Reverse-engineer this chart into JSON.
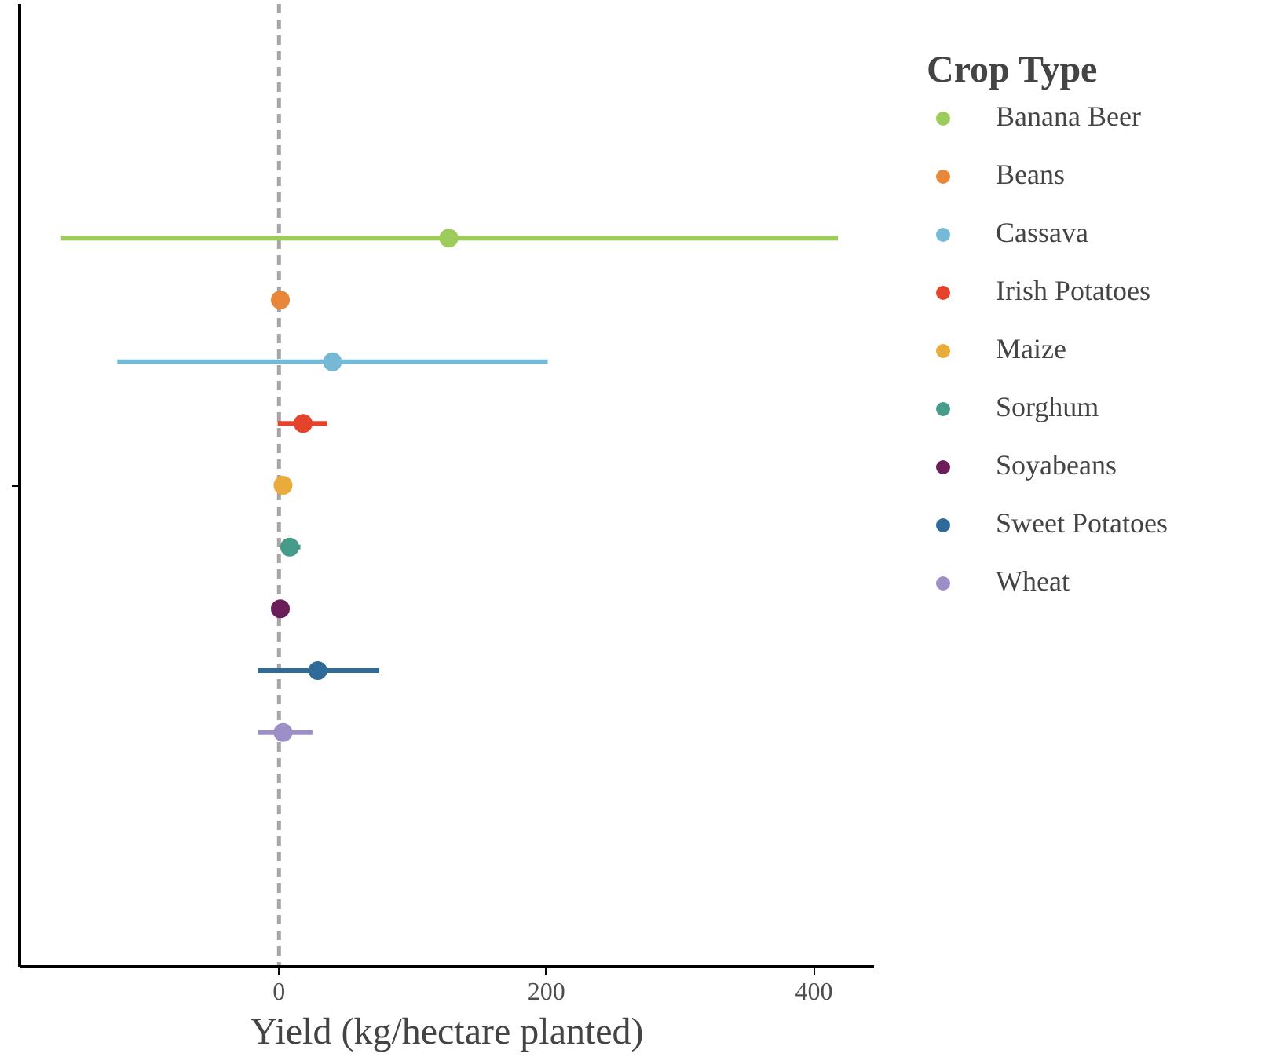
{
  "chart_data": {
    "type": "scatter",
    "orientation": "horizontal",
    "xlabel": "Yield (kg/hectare planted)",
    "legend_title": "Crop Type",
    "categories": [
      null
    ],
    "series": [
      {
        "name": "Banana Beer",
        "color": "#9dcb5c",
        "values": [
          127
        ],
        "errors": [
          [
            -163,
            418
          ]
        ]
      },
      {
        "name": "Beans",
        "color": "#e8873a",
        "values": [
          1
        ],
        "errors": [
          null
        ]
      },
      {
        "name": "Cassava",
        "color": "#76b9d7",
        "values": [
          40
        ],
        "errors": [
          [
            -121,
            201
          ]
        ]
      },
      {
        "name": "Irish Potatoes",
        "color": "#e5432b",
        "values": [
          18
        ],
        "errors": [
          [
            -1,
            36
          ]
        ]
      },
      {
        "name": "Maize",
        "color": "#e9ab3b",
        "values": [
          3
        ],
        "errors": [
          null
        ]
      },
      {
        "name": "Sorghum",
        "color": "#469c88",
        "values": [
          8
        ],
        "errors": [
          [
            2,
            16
          ]
        ]
      },
      {
        "name": "Soyabeans",
        "color": "#6b1e59",
        "values": [
          1
        ],
        "errors": [
          [
            -5,
            7
          ]
        ]
      },
      {
        "name": "Sweet Potatoes",
        "color": "#2f6a99",
        "values": [
          29
        ],
        "errors": [
          [
            -16,
            75
          ]
        ]
      },
      {
        "name": "Wheat",
        "color": "#9c8fc8",
        "values": [
          3
        ],
        "errors": [
          [
            -16,
            25
          ]
        ]
      }
    ],
    "xlim": [
      -194,
      445
    ],
    "xticks": [
      0,
      200,
      400
    ],
    "ref_lines": [
      {
        "axis": "x",
        "value": 0,
        "color": "#a6a6a6",
        "line_style": "dashed"
      }
    ],
    "grid": false,
    "legend": "right",
    "marker": "circle",
    "tick_labels": "x"
  }
}
